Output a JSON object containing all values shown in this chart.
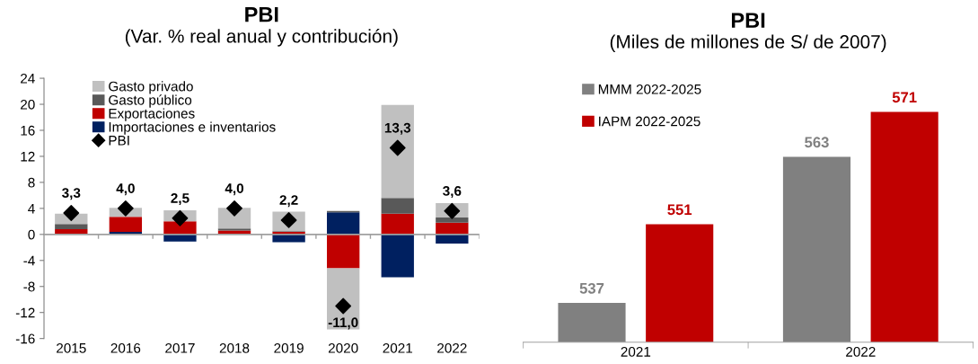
{
  "chart_data": [
    {
      "type": "bar",
      "title": "PBI",
      "subtitle": "(Var. % real anual y contribución)",
      "stacked": true,
      "categories": [
        "2015",
        "2016",
        "2017",
        "2018",
        "2019",
        "2020",
        "2021",
        "2022"
      ],
      "series": [
        {
          "name": "Importaciones e inventarios",
          "color": "#002060",
          "values": [
            0,
            0.4,
            -1.1,
            0,
            -1.2,
            3.4,
            -6.6,
            -1.4
          ]
        },
        {
          "name": "Exportaciones",
          "color": "#c00000",
          "values": [
            0.8,
            2.3,
            2.0,
            0.6,
            0.4,
            -5.2,
            3.2,
            1.8
          ]
        },
        {
          "name": "Gasto público",
          "color": "#595959",
          "values": [
            0.8,
            0,
            0,
            0.3,
            0.1,
            0.2,
            2.4,
            0.8
          ]
        },
        {
          "name": "Gasto privado",
          "color": "#c0c0c0",
          "values": [
            1.6,
            1.4,
            1.7,
            3.2,
            3.0,
            -9.4,
            14.3,
            2.2
          ]
        },
        {
          "name": "PBI",
          "type": "scatter",
          "marker": "diamond",
          "color": "#000000",
          "values": [
            3.3,
            4.0,
            2.5,
            4.0,
            2.2,
            -11.0,
            13.3,
            3.6
          ],
          "value_labels": [
            "3,3",
            "4,0",
            "2,5",
            "4,0",
            "2,2",
            "-11,0",
            "13,3",
            "3,6"
          ]
        }
      ],
      "ylim": [
        -16,
        24
      ],
      "yticks": [
        -16,
        -12,
        -8,
        -4,
        0,
        4,
        8,
        12,
        16,
        20,
        24
      ],
      "legend": "top left"
    },
    {
      "type": "bar",
      "title": "PBI",
      "subtitle": "(Miles de millones de S/ de 2007)",
      "categories": [
        "2021",
        "2022"
      ],
      "series": [
        {
          "name": "MMM 2022-2025",
          "color": "#808080",
          "values": [
            537,
            563
          ]
        },
        {
          "name": "IAPM 2022-2025",
          "color": "#c00000",
          "values": [
            551,
            571
          ]
        }
      ],
      "ylim": [
        530,
        576
      ],
      "tick_labels": "x",
      "data_labels": true,
      "grid": false,
      "legend": "top left"
    }
  ]
}
